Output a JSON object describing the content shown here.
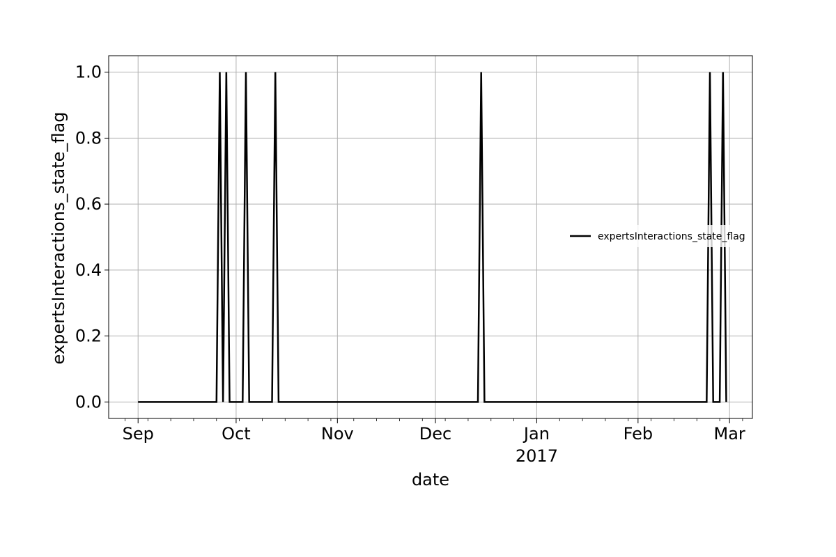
{
  "chart_data": {
    "type": "line",
    "xlabel": "date",
    "ylabel": "expertsInteractions_state_flag",
    "x_axis_kind": "date",
    "x_tick_labels": [
      {
        "date": "2016-09-01",
        "label": "Sep"
      },
      {
        "date": "2016-10-01",
        "label": "Oct"
      },
      {
        "date": "2016-11-01",
        "label": "Nov"
      },
      {
        "date": "2016-12-01",
        "label": "Dec"
      },
      {
        "date": "2017-01-01",
        "label": "Jan",
        "sublabel": "2017"
      },
      {
        "date": "2017-02-01",
        "label": "Feb"
      },
      {
        "date": "2017-03-01",
        "label": "Mar"
      }
    ],
    "xlim": [
      "2016-08-23",
      "2017-03-08"
    ],
    "y_ticks": [
      "0.0",
      "0.2",
      "0.4",
      "0.6",
      "0.8",
      "1.0"
    ],
    "ylim": [
      -0.05,
      1.05
    ],
    "grid": true,
    "legend_position": "center-right",
    "series": [
      {
        "name": "expertsInteractions_state_flag",
        "color": "#000000",
        "points": [
          {
            "x": "2016-09-01",
            "y": 0
          },
          {
            "x": "2016-09-25",
            "y": 0
          },
          {
            "x": "2016-09-26",
            "y": 1
          },
          {
            "x": "2016-09-27",
            "y": 0
          },
          {
            "x": "2016-09-28",
            "y": 1
          },
          {
            "x": "2016-09-29",
            "y": 0
          },
          {
            "x": "2016-10-03",
            "y": 0
          },
          {
            "x": "2016-10-04",
            "y": 1
          },
          {
            "x": "2016-10-05",
            "y": 0
          },
          {
            "x": "2016-10-12",
            "y": 0
          },
          {
            "x": "2016-10-13",
            "y": 1
          },
          {
            "x": "2016-10-14",
            "y": 0
          },
          {
            "x": "2016-12-14",
            "y": 0
          },
          {
            "x": "2016-12-15",
            "y": 1
          },
          {
            "x": "2016-12-16",
            "y": 0
          },
          {
            "x": "2017-02-22",
            "y": 0
          },
          {
            "x": "2017-02-23",
            "y": 1
          },
          {
            "x": "2017-02-24",
            "y": 0
          },
          {
            "x": "2017-02-26",
            "y": 0
          },
          {
            "x": "2017-02-27",
            "y": 1
          },
          {
            "x": "2017-02-28",
            "y": 0
          }
        ]
      }
    ]
  }
}
